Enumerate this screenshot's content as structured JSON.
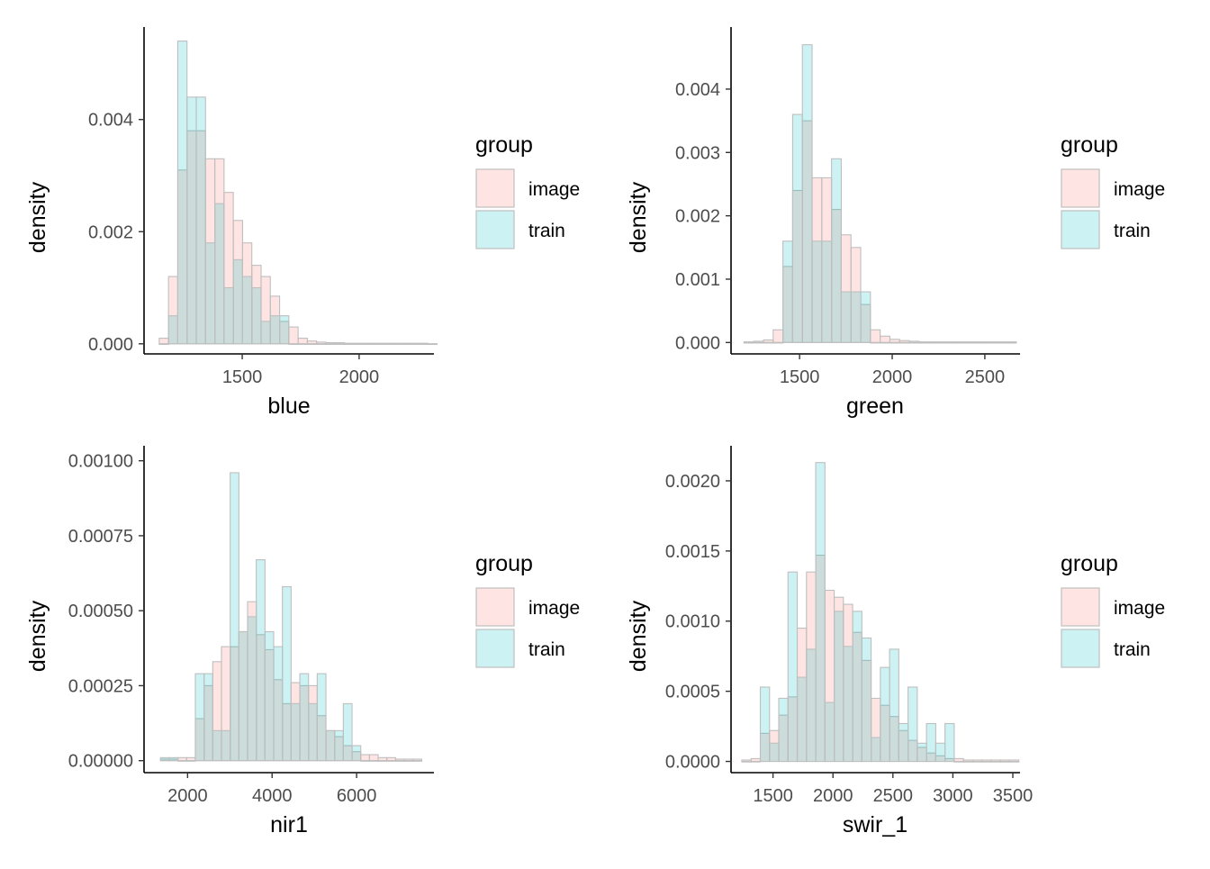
{
  "colors": {
    "image_fill": "#F8766D",
    "train_fill": "#00BFC4",
    "bar_stroke": "#BFBFBF",
    "axis": "#000000",
    "tick_text": "#4D4D4D"
  },
  "chart_data": [
    {
      "type": "bar",
      "variant": "histogram",
      "xlabel": "blue",
      "ylabel": "density",
      "xlim": [
        1080,
        2320
      ],
      "ylim": [
        -0.00018,
        0.00565
      ],
      "xticks": [
        1500,
        2000
      ],
      "xtick_labels": [
        "1500",
        "2000"
      ],
      "yticks": [
        0,
        0.002,
        0.004
      ],
      "ytick_labels": [
        "0.000",
        "0.002",
        "0.004"
      ],
      "legend": {
        "title": "group",
        "entries": [
          "image",
          "train"
        ],
        "position": "right"
      },
      "bin_start": 1145,
      "bin_width": 39.6,
      "series": [
        {
          "name": "image",
          "values": [
            0.0001,
            0.0012,
            0.0031,
            0.0038,
            0.0038,
            0.0033,
            0.0033,
            0.0027,
            0.0022,
            0.0018,
            0.0014,
            0.0012,
            0.00085,
            0.0004,
            0.0003,
            0.0001,
            5e-05,
            3e-05,
            2e-05,
            2e-05,
            1e-05,
            1e-05,
            1e-05,
            1e-05,
            1e-05,
            1e-05,
            1e-05,
            1e-05,
            1e-05,
            0
          ]
        },
        {
          "name": "train",
          "values": [
            0,
            0.0005,
            0.0054,
            0.0044,
            0.0044,
            0.0018,
            0.0025,
            0.001,
            0.0015,
            0.0012,
            0.001,
            0.0004,
            0.0005,
            0.0005,
            0,
            0,
            0,
            0,
            0,
            0,
            0,
            0,
            0,
            0,
            0,
            0,
            0,
            0,
            0,
            0
          ]
        }
      ]
    },
    {
      "type": "bar",
      "variant": "histogram",
      "xlabel": "green",
      "ylabel": "density",
      "xlim": [
        1130,
        2690
      ],
      "ylim": [
        -0.00018,
        0.00498
      ],
      "xticks": [
        1500,
        2000,
        2500
      ],
      "xtick_labels": [
        "1500",
        "2000",
        "2500"
      ],
      "yticks": [
        0,
        0.001,
        0.002,
        0.003,
        0.004
      ],
      "ytick_labels": [
        "0.000",
        "0.001",
        "0.002",
        "0.003",
        "0.004"
      ],
      "legend": {
        "title": "group",
        "entries": [
          "image",
          "train"
        ],
        "position": "right"
      },
      "bin_start": 1200,
      "bin_width": 52.5,
      "series": [
        {
          "name": "image",
          "values": [
            1e-05,
            2e-05,
            4e-05,
            0.0002,
            0.0012,
            0.0024,
            0.0035,
            0.0026,
            0.0026,
            0.0021,
            0.0017,
            0.0015,
            0.0006,
            0.0002,
            0.0001,
            5e-05,
            3e-05,
            2e-05,
            1e-05,
            1e-05,
            1e-05,
            1e-05,
            1e-05,
            1e-05,
            1e-05,
            1e-05,
            1e-05,
            1e-05
          ]
        },
        {
          "name": "train",
          "values": [
            0,
            0,
            0,
            0,
            0.0016,
            0.0036,
            0.0047,
            0.0016,
            0.0016,
            0.0029,
            0.0008,
            0.0008,
            0.0008,
            0,
            0,
            0,
            0,
            0,
            0,
            0,
            0,
            0,
            0,
            0,
            0,
            0,
            0,
            0
          ]
        }
      ]
    },
    {
      "type": "bar",
      "variant": "histogram",
      "xlabel": "nir1",
      "ylabel": "density",
      "xlim": [
        970,
        7830
      ],
      "ylim": [
        -4e-05,
        0.00105
      ],
      "xticks": [
        2000,
        4000,
        6000
      ],
      "xtick_labels": [
        "2000",
        "4000",
        "6000"
      ],
      "yticks": [
        0,
        0.00025,
        0.0005,
        0.00075,
        0.001
      ],
      "ytick_labels": [
        "0.00000",
        "0.00025",
        "0.00050",
        "0.00075",
        "0.00100"
      ],
      "legend": {
        "title": "group",
        "entries": [
          "image",
          "train"
        ],
        "position": "right"
      },
      "bin_start": 1360,
      "bin_width": 206,
      "series": [
        {
          "name": "image",
          "values": [
            5e-06,
            5e-06,
            1e-05,
            1e-05,
            0.00014,
            0.00025,
            0.00033,
            0.00038,
            0.00038,
            0.00043,
            0.00053,
            0.00042,
            0.00037,
            0.00027,
            0.00019,
            0.00026,
            0.00025,
            0.00025,
            0.00015,
            0.0001,
            8e-05,
            5e-05,
            3e-05,
            2e-05,
            2e-05,
            1e-05,
            1e-05,
            5e-06,
            5e-06,
            5e-06
          ]
        },
        {
          "name": "train",
          "values": [
            1e-05,
            1e-05,
            0,
            0,
            0.00029,
            0.00029,
            0.0001,
            0.0001,
            0.00096,
            0.00043,
            0.00048,
            0.00067,
            0.00043,
            0.00038,
            0.00058,
            0.00019,
            0.00029,
            0.00019,
            0.00029,
            0.0001,
            0.0001,
            0.00019,
            5e-05,
            0,
            0,
            0,
            0,
            0,
            0,
            0
          ]
        }
      ]
    },
    {
      "type": "bar",
      "variant": "histogram",
      "xlabel": "swir_1",
      "ylabel": "density",
      "xlim": [
        1150,
        3560
      ],
      "ylim": [
        -8e-05,
        0.00225
      ],
      "xticks": [
        1500,
        2000,
        2500,
        3000,
        3500
      ],
      "xtick_labels": [
        "1500",
        "2000",
        "2500",
        "3000",
        "3500"
      ],
      "yticks": [
        0,
        0.0005,
        0.001,
        0.0015,
        0.002
      ],
      "ytick_labels": [
        "0.0000",
        "0.0005",
        "0.0010",
        "0.0015",
        "0.0020"
      ],
      "legend": {
        "title": "group",
        "entries": [
          "image",
          "train"
        ],
        "position": "right"
      },
      "bin_start": 1240,
      "bin_width": 77,
      "series": [
        {
          "name": "image",
          "values": [
            1e-05,
            2e-05,
            0.0002,
            0.00022,
            0.00033,
            0.00046,
            0.00095,
            0.00135,
            0.00147,
            0.00122,
            0.00117,
            0.00112,
            0.00092,
            0.00072,
            0.00045,
            0.0004,
            0.00032,
            0.00022,
            0.00015,
            0.0001,
            6e-05,
            4e-05,
            2e-05,
            2e-05,
            1e-05,
            1e-05,
            1e-05,
            1e-05,
            1e-05,
            1e-05
          ]
        },
        {
          "name": "train",
          "values": [
            0,
            0,
            0.00053,
            0.00013,
            0.00045,
            0.00135,
            0.0006,
            0.0008,
            0.00213,
            0.00042,
            0.00107,
            0.00082,
            0.00107,
            0.00088,
            0.00017,
            0.00067,
            0.0008,
            0.00027,
            0.00053,
            0.00013,
            0.00027,
            0.00013,
            0.00027,
            0,
            0,
            0,
            0,
            0,
            0,
            0
          ]
        }
      ]
    }
  ]
}
